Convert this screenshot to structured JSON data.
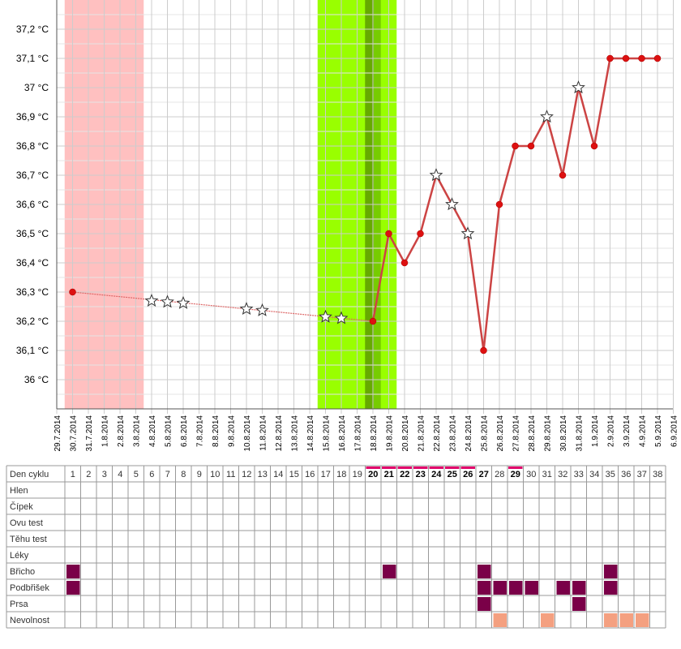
{
  "colors": {
    "menstruation": "#ffc0c0",
    "fertile": "#99ff00",
    "fertile_mid": "#77cc00",
    "ovulation": "#66aa00",
    "line": "#cc4444",
    "dot": "#dd1111",
    "dotted_line": "#dd6666",
    "grid": "#cccccc",
    "symptom_dark": "#7a0048",
    "symptom_light": "#f4a080",
    "day_marker": "#e0006a"
  },
  "chart_data": {
    "type": "line",
    "y_unit": "°C",
    "ylim": [
      35.9,
      37.3
    ],
    "y_ticks": [
      36.0,
      36.1,
      36.2,
      36.3,
      36.4,
      36.5,
      36.6,
      36.7,
      36.8,
      36.9,
      37.0,
      37.1,
      37.2
    ],
    "y_tick_labels": [
      "36 °C",
      "36,1 °C",
      "36,2 °C",
      "36,3 °C",
      "36,4 °C",
      "36,5 °C",
      "36,6 °C",
      "36,7 °C",
      "36,8 °C",
      "36,9 °C",
      "37 °C",
      "37,1 °C",
      "37,2 °C"
    ],
    "x_dates": [
      "29.7.2014",
      "30.7.2014",
      "31.7.2014",
      "1.8.2014",
      "2.8.2014",
      "3.8.2014",
      "4.8.2014",
      "5.8.2014",
      "6.8.2014",
      "7.8.2014",
      "8.8.2014",
      "9.8.2014",
      "10.8.2014",
      "11.8.2014",
      "12.8.2014",
      "13.8.2014",
      "14.8.2014",
      "15.8.2014",
      "16.8.2014",
      "17.8.2014",
      "18.8.2014",
      "19.8.2014",
      "20.8.2014",
      "21.8.2014",
      "22.8.2014",
      "23.8.2014",
      "24.8.2014",
      "25.8.2014",
      "26.8.2014",
      "27.8.2014",
      "28.8.2014",
      "29.8.2014",
      "30.8.2014",
      "31.8.2014",
      "1.9.2014",
      "2.9.2014",
      "3.9.2014",
      "4.9.2014",
      "5.9.2014",
      "6.9.2014"
    ],
    "menstruation_days": [
      1,
      5
    ],
    "fertile_days": [
      17,
      21
    ],
    "ovulation_days": [
      20,
      20
    ],
    "measured": [
      {
        "day": 1,
        "temp": 36.3
      },
      {
        "day": 20,
        "temp": 36.2
      },
      {
        "day": 21,
        "temp": 36.5
      },
      {
        "day": 22,
        "temp": 36.4
      },
      {
        "day": 23,
        "temp": 36.5
      },
      {
        "day": 27,
        "temp": 36.1
      },
      {
        "day": 28,
        "temp": 36.6
      },
      {
        "day": 29,
        "temp": 36.8
      },
      {
        "day": 30,
        "temp": 36.8
      },
      {
        "day": 32,
        "temp": 36.7
      },
      {
        "day": 34,
        "temp": 36.8
      },
      {
        "day": 35,
        "temp": 37.1
      },
      {
        "day": 36,
        "temp": 37.1
      },
      {
        "day": 37,
        "temp": 37.1
      },
      {
        "day": 38,
        "temp": 37.1
      }
    ],
    "starred": [
      {
        "day": 6,
        "temp": 36.27
      },
      {
        "day": 7,
        "temp": 36.266
      },
      {
        "day": 8,
        "temp": 36.262
      },
      {
        "day": 12,
        "temp": 36.242
      },
      {
        "day": 13,
        "temp": 36.237
      },
      {
        "day": 17,
        "temp": 36.215
      },
      {
        "day": 18,
        "temp": 36.21
      },
      {
        "day": 24,
        "temp": 36.7
      },
      {
        "day": 25,
        "temp": 36.6
      },
      {
        "day": 26,
        "temp": 36.5
      },
      {
        "day": 31,
        "temp": 36.9
      },
      {
        "day": 33,
        "temp": 37.0
      }
    ],
    "interpolated_segment": [
      1,
      20
    ],
    "solid_segment": [
      20,
      38
    ]
  },
  "table": {
    "header_label": "Den cyklu",
    "days": [
      "1",
      "2",
      "3",
      "4",
      "5",
      "6",
      "7",
      "8",
      "9",
      "10",
      "11",
      "12",
      "13",
      "14",
      "15",
      "16",
      "17",
      "18",
      "19",
      "20",
      "21",
      "22",
      "23",
      "24",
      "25",
      "26",
      "27",
      "28",
      "29",
      "30",
      "31",
      "32",
      "33",
      "34",
      "35",
      "36",
      "37",
      "38"
    ],
    "bold_days": [
      20,
      21,
      22,
      23,
      24,
      25,
      26,
      27,
      29
    ],
    "marked_days": [
      20,
      21,
      22,
      23,
      24,
      25,
      26,
      29
    ],
    "rows": [
      {
        "label": "Hlen",
        "dark": [],
        "light": []
      },
      {
        "label": "Čípek",
        "dark": [],
        "light": []
      },
      {
        "label": "Ovu test",
        "dark": [],
        "light": []
      },
      {
        "label": "Těhu test",
        "dark": [],
        "light": []
      },
      {
        "label": "Léky",
        "dark": [],
        "light": []
      },
      {
        "label": "Břicho",
        "dark": [
          1,
          21,
          27,
          35
        ],
        "light": []
      },
      {
        "label": "Podbřišek",
        "dark": [
          1,
          27,
          28,
          29,
          30,
          32,
          33,
          35
        ],
        "light": []
      },
      {
        "label": "Prsa",
        "dark": [
          27,
          33
        ],
        "light": []
      },
      {
        "label": "Nevolnost",
        "dark": [],
        "light": [
          28,
          31,
          35,
          36,
          37
        ]
      }
    ]
  }
}
